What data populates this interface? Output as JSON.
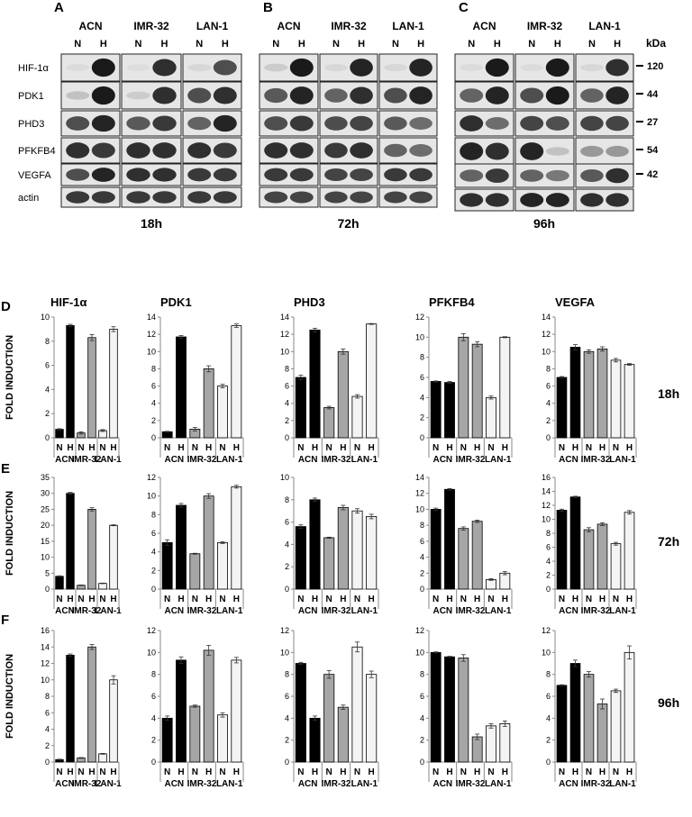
{
  "western": {
    "panels": [
      {
        "letter": "A",
        "time": "18h"
      },
      {
        "letter": "B",
        "time": "72h"
      },
      {
        "letter": "C",
        "time": "96h"
      }
    ],
    "cell_lines": [
      "ACN",
      "IMR-32",
      "LAN-1"
    ],
    "conditions": [
      "N",
      "H"
    ],
    "proteins": [
      "HIF-1α",
      "PDK1",
      "PHD3",
      "PFKFB4",
      "VEGFA",
      "actin"
    ],
    "kda_header": "kDa",
    "kda_markers": [
      "120",
      "44",
      "27",
      "54",
      "42"
    ],
    "band_intensity": {
      "18h": {
        "HIF-1α": [
          0.03,
          0.95,
          0.02,
          0.85,
          0.05,
          0.7
        ],
        "PDK1": [
          0.15,
          0.95,
          0.1,
          0.85,
          0.7,
          0.85
        ],
        "PHD3": [
          0.7,
          0.9,
          0.65,
          0.8,
          0.6,
          0.9
        ],
        "PFKFB4": [
          0.85,
          0.8,
          0.85,
          0.85,
          0.85,
          0.8
        ],
        "VEGFA": [
          0.7,
          0.9,
          0.85,
          0.85,
          0.8,
          0.8
        ],
        "actin": [
          0.8,
          0.8,
          0.8,
          0.8,
          0.8,
          0.8
        ]
      },
      "72h": {
        "HIF-1α": [
          0.1,
          0.95,
          0.05,
          0.9,
          0.05,
          0.9
        ],
        "PDK1": [
          0.65,
          0.9,
          0.6,
          0.85,
          0.7,
          0.9
        ],
        "PHD3": [
          0.7,
          0.8,
          0.7,
          0.75,
          0.65,
          0.55
        ],
        "PFKFB4": [
          0.85,
          0.85,
          0.8,
          0.85,
          0.6,
          0.55
        ],
        "VEGFA": [
          0.8,
          0.8,
          0.75,
          0.75,
          0.8,
          0.8
        ],
        "actin": [
          0.75,
          0.75,
          0.75,
          0.75,
          0.75,
          0.75
        ]
      },
      "96h": {
        "HIF-1α": [
          0.03,
          0.95,
          0.03,
          0.95,
          0.05,
          0.85
        ],
        "PDK1": [
          0.6,
          0.9,
          0.7,
          0.95,
          0.6,
          0.9
        ],
        "PHD3": [
          0.85,
          0.55,
          0.75,
          0.7,
          0.75,
          0.75
        ],
        "PFKFB4": [
          0.9,
          0.85,
          0.9,
          0.15,
          0.35,
          0.35
        ],
        "VEGFA": [
          0.6,
          0.8,
          0.6,
          0.5,
          0.65,
          0.85
        ],
        "actin": [
          0.85,
          0.85,
          0.9,
          0.9,
          0.85,
          0.85
        ]
      }
    }
  },
  "chart_rows": [
    {
      "letter": "D",
      "time": "18h"
    },
    {
      "letter": "E",
      "time": "72h"
    },
    {
      "letter": "F",
      "time": "96h"
    }
  ],
  "y_axis_label": "FOLD INDUCTION",
  "x_conditions": [
    "N",
    "H",
    "N",
    "H",
    "N",
    "H"
  ],
  "x_groups": [
    "ACN",
    "IMR-32",
    "LAN-1"
  ],
  "colors": {
    "ACN": "#000000",
    "IMR-32": "#a6a6a6",
    "LAN-1": "#f4f4f4",
    "axis": "#888888"
  },
  "chart_data": [
    {
      "type": "bar",
      "row": "D",
      "title": "HIF-1α",
      "ylim": [
        0,
        10
      ],
      "yticks": [
        0,
        2,
        4,
        6,
        8,
        10
      ],
      "values": [
        0.7,
        9.3,
        0.4,
        8.3,
        0.6,
        9.0
      ],
      "errors": [
        0.05,
        0.1,
        0.1,
        0.25,
        0.08,
        0.2
      ]
    },
    {
      "type": "bar",
      "row": "D",
      "title": "PDK1",
      "ylim": [
        0,
        14
      ],
      "yticks": [
        0,
        2,
        4,
        6,
        8,
        10,
        12,
        14
      ],
      "values": [
        0.7,
        11.7,
        1.0,
        8.0,
        6.0,
        13.0
      ],
      "errors": [
        0.05,
        0.15,
        0.2,
        0.35,
        0.2,
        0.2
      ]
    },
    {
      "type": "bar",
      "row": "D",
      "title": "PHD3",
      "ylim": [
        0,
        14
      ],
      "yticks": [
        0,
        2,
        4,
        6,
        8,
        10,
        12,
        14
      ],
      "values": [
        7.0,
        12.5,
        3.5,
        10.0,
        4.8,
        13.2
      ],
      "errors": [
        0.25,
        0.2,
        0.15,
        0.3,
        0.2,
        0.05
      ]
    },
    {
      "type": "bar",
      "row": "D",
      "title": "PFKFB4",
      "ylim": [
        0,
        12
      ],
      "yticks": [
        0,
        2,
        4,
        6,
        8,
        10,
        12
      ],
      "values": [
        5.6,
        5.5,
        10.0,
        9.3,
        4.0,
        10.0
      ],
      "errors": [
        0.05,
        0.1,
        0.35,
        0.25,
        0.15,
        0.05
      ]
    },
    {
      "type": "bar",
      "row": "D",
      "title": "VEGFA",
      "ylim": [
        0,
        14
      ],
      "yticks": [
        0,
        2,
        4,
        6,
        8,
        10,
        12,
        14
      ],
      "values": [
        7.0,
        10.5,
        10.0,
        10.3,
        9.0,
        8.5
      ],
      "errors": [
        0.1,
        0.3,
        0.2,
        0.25,
        0.2,
        0.1
      ]
    },
    {
      "type": "bar",
      "row": "E",
      "ylim": [
        0,
        35
      ],
      "yticks": [
        0,
        5,
        10,
        15,
        20,
        25,
        30,
        35
      ],
      "values": [
        4.0,
        30.0,
        1.2,
        25.0,
        1.8,
        20.0
      ],
      "errors": [
        0.15,
        0.3,
        0.1,
        0.5,
        0.1,
        0.15
      ]
    },
    {
      "type": "bar",
      "row": "E",
      "ylim": [
        0,
        12
      ],
      "yticks": [
        0,
        2,
        4,
        6,
        8,
        10,
        12
      ],
      "values": [
        5.0,
        9.0,
        3.8,
        10.0,
        5.0,
        11.0
      ],
      "errors": [
        0.3,
        0.2,
        0.05,
        0.25,
        0.1,
        0.15
      ]
    },
    {
      "type": "bar",
      "row": "E",
      "ylim": [
        0,
        10
      ],
      "yticks": [
        0,
        2,
        4,
        6,
        8,
        10
      ],
      "values": [
        5.6,
        8.0,
        4.6,
        7.3,
        7.0,
        6.5
      ],
      "errors": [
        0.15,
        0.15,
        0.05,
        0.2,
        0.2,
        0.2
      ]
    },
    {
      "type": "bar",
      "row": "E",
      "ylim": [
        0,
        14
      ],
      "yticks": [
        0,
        2,
        4,
        6,
        8,
        10,
        12,
        14
      ],
      "values": [
        10.0,
        12.5,
        7.6,
        8.5,
        1.2,
        2.0
      ],
      "errors": [
        0.15,
        0.1,
        0.2,
        0.15,
        0.1,
        0.2
      ]
    },
    {
      "type": "bar",
      "row": "E",
      "ylim": [
        0,
        16
      ],
      "yticks": [
        0,
        2,
        4,
        6,
        8,
        10,
        12,
        14,
        16
      ],
      "values": [
        11.3,
        13.2,
        8.5,
        9.3,
        6.5,
        11.0
      ],
      "errors": [
        0.15,
        0.1,
        0.3,
        0.2,
        0.2,
        0.25
      ]
    },
    {
      "type": "bar",
      "row": "F",
      "ylim": [
        0,
        16
      ],
      "yticks": [
        0,
        2,
        4,
        6,
        8,
        10,
        12,
        14,
        16
      ],
      "values": [
        0.3,
        13.0,
        0.5,
        14.0,
        1.0,
        10.0
      ],
      "errors": [
        0.05,
        0.15,
        0.05,
        0.3,
        0.05,
        0.5
      ]
    },
    {
      "type": "bar",
      "row": "F",
      "ylim": [
        0,
        12
      ],
      "yticks": [
        0,
        2,
        4,
        6,
        8,
        10,
        12
      ],
      "values": [
        4.0,
        9.3,
        5.1,
        10.2,
        4.3,
        9.3
      ],
      "errors": [
        0.2,
        0.3,
        0.1,
        0.45,
        0.2,
        0.25
      ]
    },
    {
      "type": "bar",
      "row": "F",
      "ylim": [
        0,
        12
      ],
      "yticks": [
        0,
        2,
        4,
        6,
        8,
        10,
        12
      ],
      "values": [
        9.0,
        4.0,
        8.0,
        5.0,
        10.5,
        8.0
      ],
      "errors": [
        0.1,
        0.2,
        0.35,
        0.2,
        0.45,
        0.3
      ]
    },
    {
      "type": "bar",
      "row": "F",
      "ylim": [
        0,
        12
      ],
      "yticks": [
        0,
        2,
        4,
        6,
        8,
        10,
        12
      ],
      "values": [
        10.0,
        9.6,
        9.5,
        2.3,
        3.3,
        3.5
      ],
      "errors": [
        0.05,
        0.05,
        0.3,
        0.25,
        0.2,
        0.25
      ]
    },
    {
      "type": "bar",
      "row": "F",
      "ylim": [
        0,
        12
      ],
      "yticks": [
        0,
        2,
        4,
        6,
        8,
        10,
        12
      ],
      "values": [
        7.0,
        9.0,
        8.0,
        5.3,
        6.5,
        10.0
      ],
      "errors": [
        0.05,
        0.3,
        0.25,
        0.45,
        0.15,
        0.6
      ]
    }
  ]
}
